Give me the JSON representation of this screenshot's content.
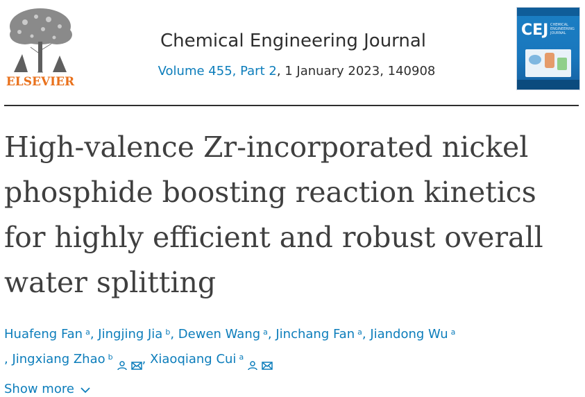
{
  "publisher": {
    "logo_text": "ELSEVIER"
  },
  "journal": {
    "title": "Chemical Engineering Journal",
    "volume_link": "Volume 455, Part 2",
    "volume_rest": ", 1 January 2023, 140908"
  },
  "cover": {
    "abbrev": "CEJ",
    "subtitle": "CHEMICAL ENGINEERING JOURNAL"
  },
  "article": {
    "title": "High-valence Zr-incorporated nickel phosphide boosting reaction kinetics for highly efficient and robust overall water splitting"
  },
  "authors": [
    {
      "name": "Huafeng Fan",
      "affil": "a"
    },
    {
      "name": "Jingjing Jia",
      "affil": "b"
    },
    {
      "name": "Dewen Wang",
      "affil": "a"
    },
    {
      "name": "Jinchang Fan",
      "affil": "a"
    },
    {
      "name": "Jiandong Wu",
      "affil": "a"
    },
    {
      "name": "Jingxiang Zhao",
      "affil": "b"
    },
    {
      "name": "Xiaoqiang Cui",
      "affil": "a"
    }
  ],
  "ui": {
    "separator": ", ",
    "show_more": "Show more"
  },
  "colors": {
    "link": "#0c7dbb",
    "text": "#2e2e2e",
    "elsevier_orange": "#e9711c"
  },
  "icons": {
    "person": "person-icon",
    "mail": "mail-icon",
    "chevron": "chevron-down-icon"
  }
}
